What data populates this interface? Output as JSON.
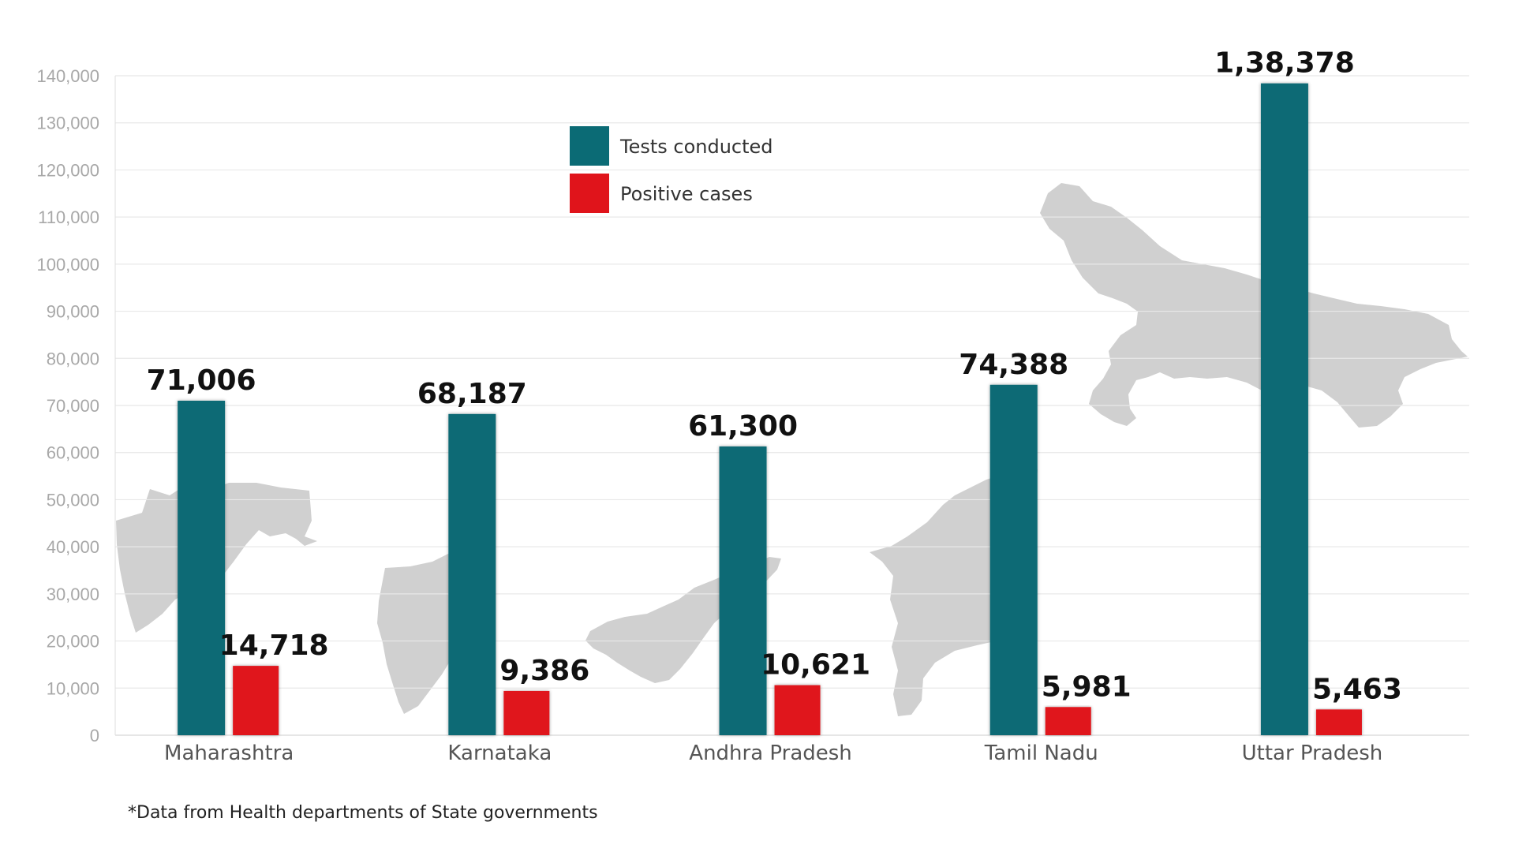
{
  "chart_data": {
    "type": "bar",
    "categories": [
      "Maharashtra",
      "Karnataka",
      "Andhra Pradesh",
      "Tamil Nadu",
      "Uttar Pradesh"
    ],
    "series": [
      {
        "name": "Tests conducted",
        "values": [
          71006,
          68187,
          61300,
          74388,
          138378
        ],
        "labels": [
          "71,006",
          "68,187",
          "61,300",
          "74,388",
          "1,38,378"
        ],
        "color": "#0b6b75"
      },
      {
        "name": "Positive cases",
        "values": [
          14718,
          9386,
          10621,
          5981,
          5463
        ],
        "labels": [
          "14,718",
          "9,386",
          "10,621",
          "5,981",
          "5,463"
        ],
        "color": "#e0141b"
      }
    ],
    "ylim": [
      0,
      140000
    ],
    "yticks": [
      0,
      10000,
      20000,
      30000,
      40000,
      50000,
      60000,
      70000,
      80000,
      90000,
      100000,
      110000,
      120000,
      130000,
      140000
    ],
    "ytick_labels": [
      "0",
      "10,000",
      "20,000",
      "30,000",
      "40,000",
      "50,000",
      "60,000",
      "70,000",
      "80,000",
      "90,000",
      "100,000",
      "110,000",
      "120,000",
      "130,000",
      "140,000"
    ],
    "grid": true,
    "legend_position": "top-center",
    "background_icons": [
      "maharashtra-map-silhouette",
      "karnataka-map-silhouette",
      "andhra-pradesh-map-silhouette",
      "tamil-nadu-map-silhouette",
      "uttar-pradesh-map-silhouette"
    ],
    "map_color": "#d0d0d0",
    "footnote": "*Data from Health departments of State governments"
  }
}
